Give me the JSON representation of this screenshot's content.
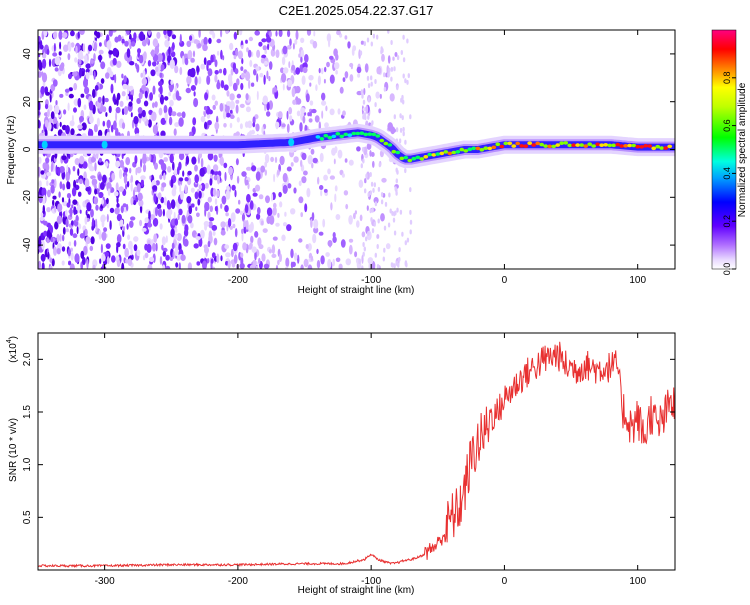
{
  "title": "C2E1.2025.054.22.37.G17",
  "colorbar": {
    "label": "Normalized spectral amplitude",
    "ticks": [
      "0.0",
      "0.2",
      "0.4",
      "0.6",
      "0.8"
    ],
    "tick_values": [
      0.0,
      0.2,
      0.4,
      0.6,
      0.8
    ],
    "range": [
      0,
      1
    ],
    "colors": [
      "#ffffff",
      "#b070ff",
      "#6000ff",
      "#0000ff",
      "#00e0ff",
      "#00ff00",
      "#ffff00",
      "#ff8000",
      "#ff0000",
      "#ff0080"
    ]
  },
  "chart_data": [
    {
      "type": "heatmap",
      "title": "C2E1.2025.054.22.37.G17",
      "xlabel": "Height of straight line (km)",
      "ylabel": "Frequency (Hz)",
      "xlim": [
        -350,
        128
      ],
      "ylim": [
        -50,
        50
      ],
      "xticks": [
        -300,
        -200,
        -100,
        0,
        100
      ],
      "yticks": [
        -40,
        -20,
        0,
        20,
        40
      ],
      "grid": false,
      "signal_track": {
        "x": [
          -350,
          -300,
          -250,
          -200,
          -160,
          -140,
          -125,
          -110,
          -100,
          -95,
          -90,
          -85,
          -80,
          -75,
          -70,
          -60,
          -50,
          -40,
          -30,
          -20,
          -10,
          0,
          10,
          20,
          40,
          60,
          80,
          100,
          128
        ],
        "y": [
          2,
          2,
          2,
          2,
          3,
          5,
          6,
          7,
          6,
          5,
          3,
          1,
          -2,
          -4,
          -4,
          -3,
          -2,
          -1,
          0,
          0,
          1,
          2,
          2,
          2,
          2,
          2,
          2,
          1,
          1
        ]
      }
    },
    {
      "type": "line",
      "xlabel": "Height of straight line (km)",
      "ylabel": "SNR (10 * v/v)",
      "y_multiplier_label": "(x10",
      "y_multiplier_exp": "4",
      "xlim": [
        -350,
        128
      ],
      "ylim": [
        0,
        2.25
      ],
      "xticks": [
        -300,
        -200,
        -100,
        0,
        100
      ],
      "yticks": [
        "0.5",
        "1.0",
        "1.5",
        "2.0"
      ],
      "ytick_values": [
        0.5,
        1.0,
        1.5,
        2.0
      ],
      "grid": false,
      "color": "#e83030",
      "series": [
        {
          "x": [
            -350,
            -300,
            -250,
            -200,
            -150,
            -120,
            -105,
            -100,
            -95,
            -90,
            -85,
            -80,
            -75,
            -70,
            -65,
            -60,
            -55,
            -50,
            -45,
            -40,
            -35,
            -30,
            -25,
            -20,
            -15,
            -10,
            -5,
            0,
            5,
            10,
            15,
            20,
            25,
            30,
            35,
            40,
            45,
            50,
            55,
            60,
            65,
            70,
            75,
            80,
            85,
            88,
            92,
            96,
            100,
            105,
            110,
            115,
            120,
            125,
            128
          ],
          "values": [
            0.04,
            0.04,
            0.05,
            0.05,
            0.06,
            0.06,
            0.1,
            0.15,
            0.1,
            0.08,
            0.06,
            0.07,
            0.09,
            0.1,
            0.12,
            0.15,
            0.2,
            0.25,
            0.35,
            0.5,
            0.55,
            0.75,
            1.05,
            1.2,
            1.3,
            1.45,
            1.5,
            1.62,
            1.7,
            1.78,
            1.85,
            1.9,
            1.95,
            2.0,
            2.02,
            2.05,
            1.95,
            1.92,
            1.9,
            1.95,
            1.93,
            1.9,
            1.92,
            1.93,
            1.95,
            1.55,
            1.45,
            1.35,
            1.45,
            1.25,
            1.5,
            1.35,
            1.45,
            1.6,
            1.55
          ]
        }
      ]
    }
  ]
}
